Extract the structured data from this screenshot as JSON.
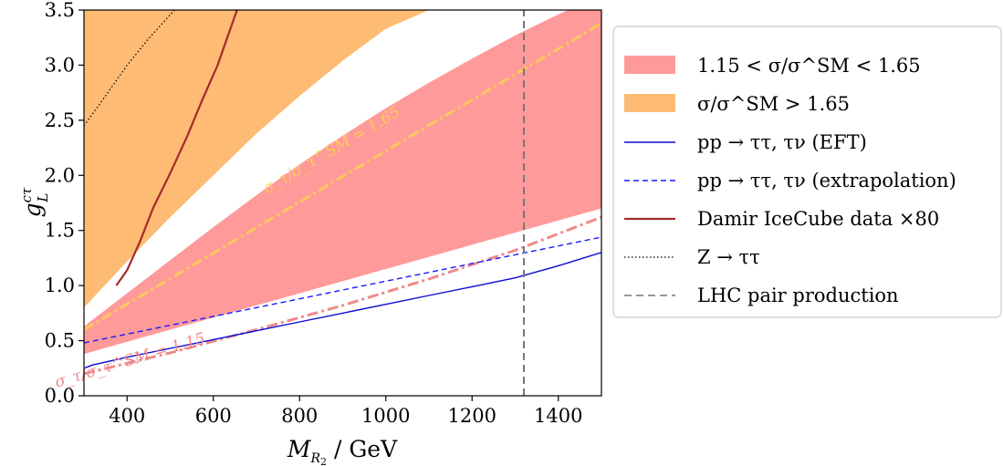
{
  "chart_data": {
    "type": "line",
    "xlabel": "M_{R2} / GeV",
    "ylabel": "g_L^{cτ}",
    "xlim": [
      300,
      1500
    ],
    "ylim": [
      0.0,
      3.5
    ],
    "xticks": [
      400,
      600,
      800,
      1000,
      1200,
      1400
    ],
    "yticks": [
      0.0,
      0.5,
      1.0,
      1.5,
      2.0,
      2.5,
      3.0,
      3.5
    ],
    "xtick_labels": [
      "400",
      "600",
      "800",
      "1000",
      "1200",
      "1400"
    ],
    "ytick_labels": [
      "0.0",
      "0.5",
      "1.0",
      "1.5",
      "2.0",
      "2.5",
      "3.0",
      "3.5"
    ],
    "grid": false,
    "legend_placement": "outside right",
    "regions": [
      {
        "name": "1.15 < σ/σ^SM < 1.65",
        "color": "#ff9a9a",
        "lower": {
          "x": [
            300,
            400,
            500,
            600,
            700,
            800,
            900,
            1000,
            1100,
            1200,
            1300,
            1400,
            1500
          ],
          "y": [
            0.38,
            0.49,
            0.6,
            0.71,
            0.82,
            0.93,
            1.04,
            1.15,
            1.26,
            1.37,
            1.48,
            1.59,
            1.7
          ]
        },
        "upper": {
          "x": [
            300,
            400,
            500,
            600,
            700,
            800,
            900,
            1000,
            1100,
            1200,
            1300,
            1400,
            1500
          ],
          "y": [
            0.63,
            0.93,
            1.23,
            1.53,
            1.82,
            2.1,
            2.36,
            2.61,
            2.84,
            3.06,
            3.27,
            3.46,
            3.64
          ]
        }
      },
      {
        "name": "σ/σ^SM > 1.65",
        "color": "#fdbb74",
        "lower": {
          "x": [
            300,
            400,
            500,
            600,
            700,
            800,
            900,
            1000,
            1100
          ],
          "y": [
            0.8,
            1.22,
            1.62,
            2.0,
            2.38,
            2.72,
            3.04,
            3.33,
            3.5
          ]
        },
        "upper": {
          "x": [
            300,
            1100
          ],
          "y": [
            3.5,
            3.5
          ]
        }
      }
    ],
    "series": [
      {
        "name": "pp → ττ, τν (EFT)",
        "color": "#0a0ad2",
        "style": "solid",
        "x": [
          300,
          320,
          400,
          500,
          600,
          700,
          800,
          900,
          1000,
          1100,
          1200,
          1300,
          1400,
          1500
        ],
        "y": [
          0.25,
          0.28,
          0.35,
          0.43,
          0.51,
          0.59,
          0.67,
          0.75,
          0.83,
          0.91,
          0.99,
          1.07,
          1.18,
          1.3
        ]
      },
      {
        "name": "pp → ττ, τν (extrapolation)",
        "color": "#1a1aff",
        "style": "dashed",
        "x": [
          300,
          1500
        ],
        "y": [
          0.48,
          1.44
        ]
      },
      {
        "name": "Damir IceCube data ×80",
        "color": "#a52a2a",
        "style": "solid",
        "x": [
          375,
          400,
          430,
          460,
          500,
          540,
          575,
          610,
          635,
          655
        ],
        "y": [
          1.0,
          1.14,
          1.4,
          1.7,
          2.02,
          2.36,
          2.69,
          3.0,
          3.28,
          3.5
        ]
      },
      {
        "name": "Z → ττ",
        "color": "#000000",
        "style": "dotted",
        "x": [
          300,
          350,
          400,
          450,
          510
        ],
        "y": [
          2.45,
          2.72,
          3.0,
          3.24,
          3.5
        ]
      },
      {
        "name": "LHC pair production",
        "color": "#777777",
        "style": "dashed-vertical",
        "x": [
          1320,
          1320
        ],
        "y": [
          0.0,
          3.5
        ]
      }
    ],
    "contours": [
      {
        "label": "σ_τ/σ_τ^SM = 1.65",
        "color": "#fdca5a",
        "x": [
          300,
          1500
        ],
        "y": [
          0.6,
          3.38
        ]
      },
      {
        "label": "σ_τ/σ_τ^SM = 1.15",
        "color": "#f08a8a",
        "x": [
          300,
          500,
          700,
          900,
          1100,
          1300,
          1500
        ],
        "y": [
          0.2,
          0.39,
          0.6,
          0.82,
          1.06,
          1.32,
          1.62
        ]
      }
    ]
  },
  "legend": [
    {
      "label": "1.15 < σ/σ^SM < 1.65",
      "kind": "patch",
      "color": "#ff9a9a"
    },
    {
      "label": "σ/σ^SM > 1.65",
      "kind": "patch",
      "color": "#fdbb74"
    },
    {
      "label": "pp → ττ, τν (EFT)",
      "kind": "line",
      "color": "#0a0ad2",
      "dash": ""
    },
    {
      "label": "pp → ττ, τν (extrapolation)",
      "kind": "line",
      "color": "#1a1aff",
      "dash": "6,4"
    },
    {
      "label": "Damir IceCube data ×80",
      "kind": "line",
      "color": "#a52a2a",
      "dash": ""
    },
    {
      "label": "Z → ττ",
      "kind": "line",
      "color": "#000000",
      "dash": "1.5,2.5"
    },
    {
      "label": "LHC pair production",
      "kind": "line",
      "color": "#777777",
      "dash": "8,5"
    }
  ]
}
